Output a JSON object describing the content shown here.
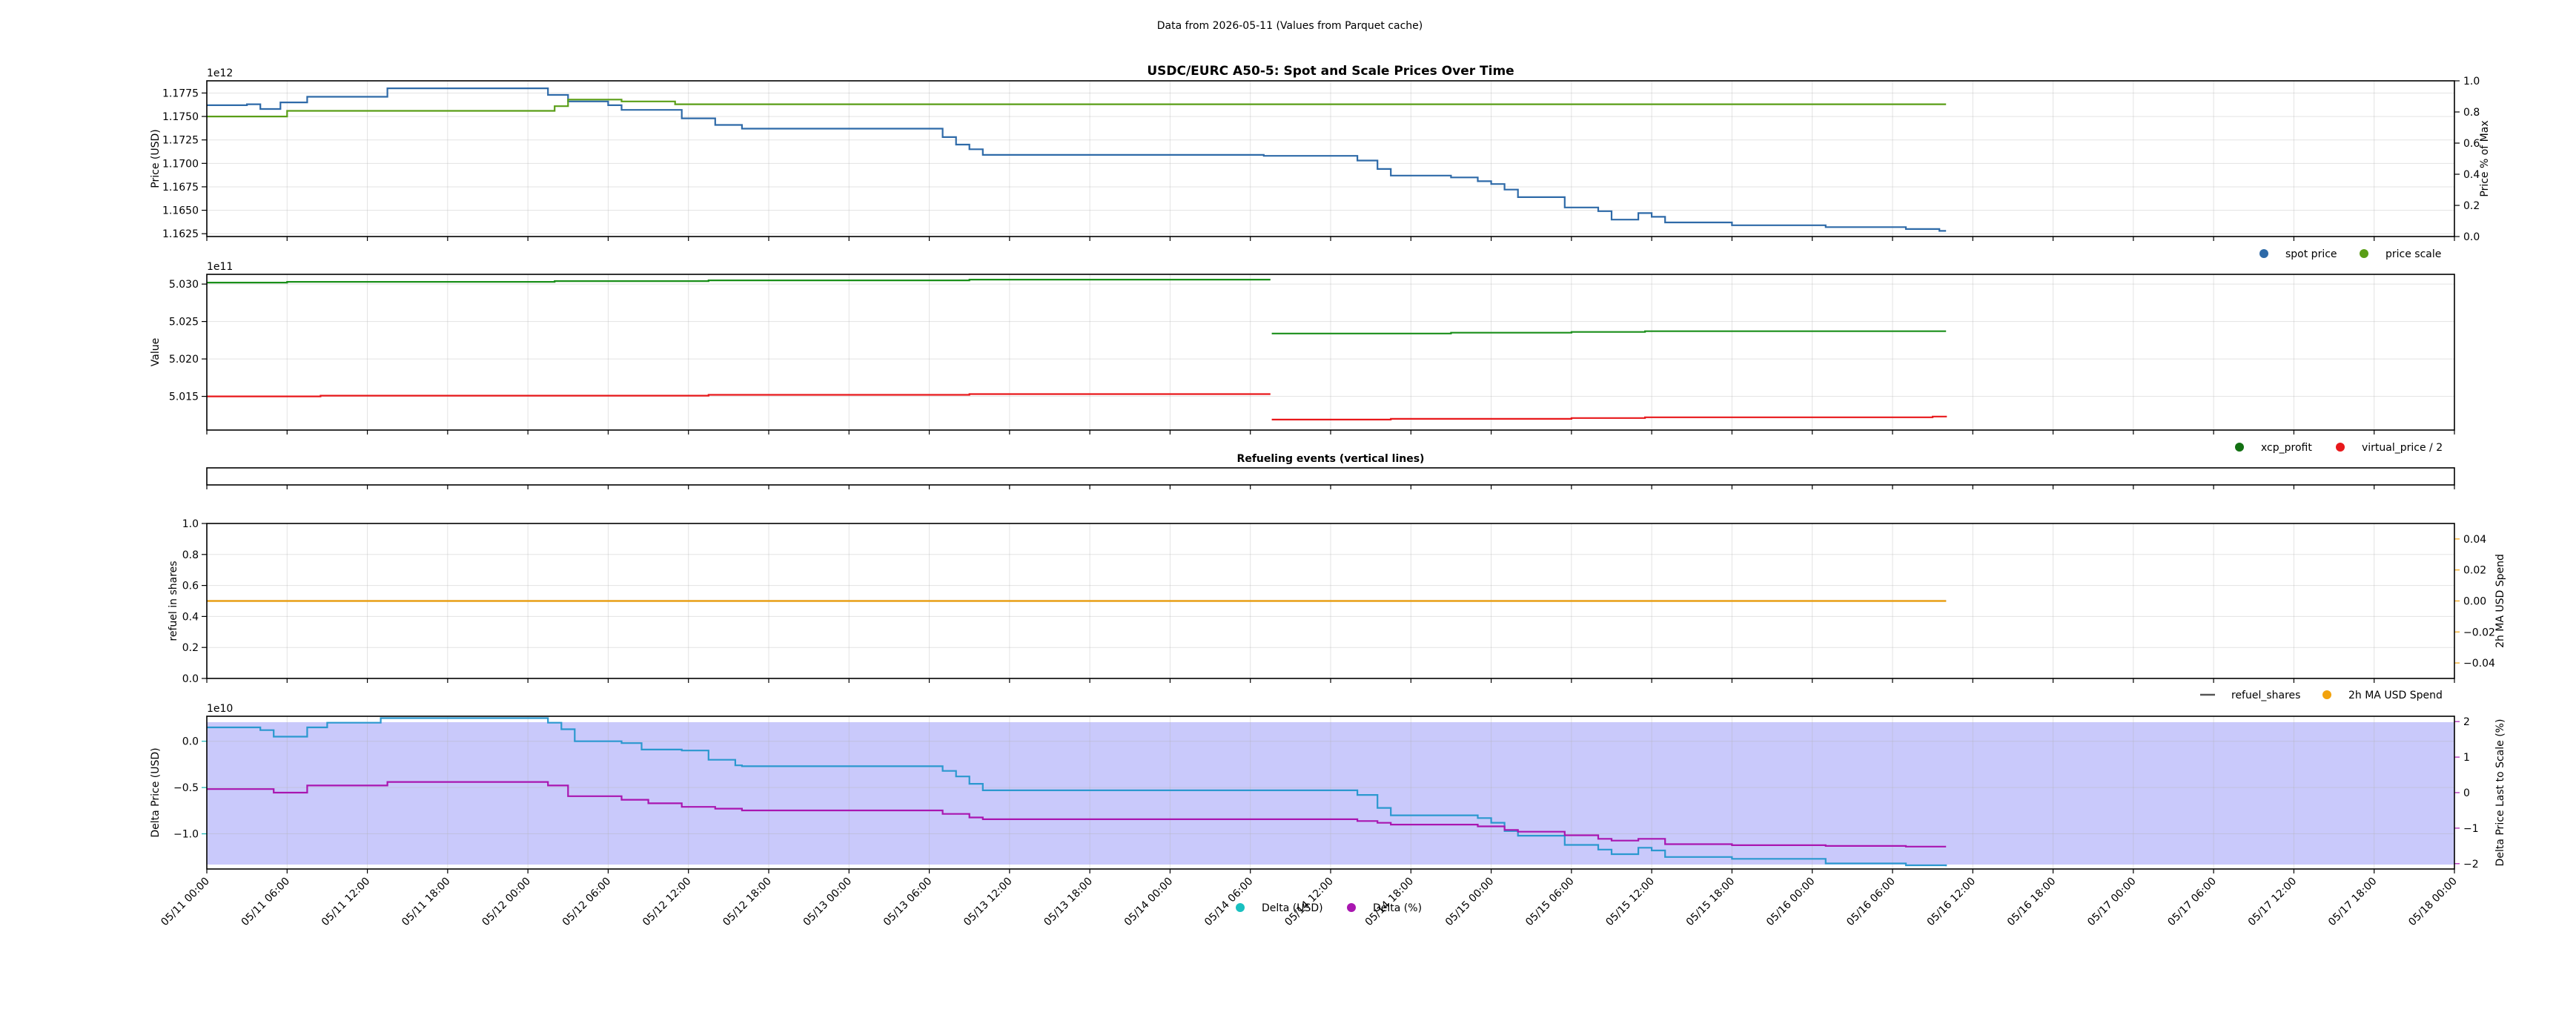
{
  "figure": {
    "suptitle": "Data from 2026-05-11 (Values from Parquet cache)"
  },
  "time_axis": {
    "start": "2026-05-11 00:00",
    "end": "2026-05-18 00:00",
    "data_end": "2026-05-16 10:00",
    "tick_labels": [
      "05/11 00:00",
      "05/11 06:00",
      "05/11 12:00",
      "05/11 18:00",
      "05/12 00:00",
      "05/12 06:00",
      "05/12 12:00",
      "05/12 18:00",
      "05/13 00:00",
      "05/13 06:00",
      "05/13 12:00",
      "05/13 18:00",
      "05/14 00:00",
      "05/14 06:00",
      "05/14 12:00",
      "05/14 18:00",
      "05/15 00:00",
      "05/15 06:00",
      "05/15 12:00",
      "05/15 18:00",
      "05/16 00:00",
      "05/16 06:00",
      "05/16 12:00",
      "05/16 18:00",
      "05/17 00:00",
      "05/17 06:00",
      "05/17 12:00",
      "05/17 18:00",
      "05/18 00:00"
    ]
  },
  "chart_data": [
    {
      "type": "line",
      "title": "USDC/EURC A50-5: Spot and Scale Prices Over Time",
      "ylabel": "Price (USD)",
      "y_offset_text": "1e12",
      "ylim": [
        1.1622,
        1.1788
      ],
      "yticks": [
        1.1625,
        1.165,
        1.1675,
        1.17,
        1.1725,
        1.175,
        1.1775
      ],
      "ytick_labels": [
        "1.1625",
        "1.1650",
        "1.1675",
        "1.1700",
        "1.1725",
        "1.1750",
        "1.1775"
      ],
      "y2label": "Price % of Max",
      "y2lim": [
        0,
        1
      ],
      "y2tick_labels": [
        "0.0",
        "0.2",
        "0.4",
        "0.6",
        "0.8",
        "1.0"
      ],
      "legend": "bottom-right",
      "grid": true,
      "series": [
        {
          "name": "spot price",
          "color": "#2e6aa8",
          "marker_color": "#2e6aa8",
          "step_points": [
            [
              0,
              1.1762
            ],
            [
              3,
              1.1763
            ],
            [
              4,
              1.1758
            ],
            [
              5.5,
              1.1765
            ],
            [
              7.5,
              1.1771
            ],
            [
              13.5,
              1.178
            ],
            [
              25.5,
              1.1773
            ],
            [
              27,
              1.1766
            ],
            [
              30,
              1.1762
            ],
            [
              31,
              1.1757
            ],
            [
              35.5,
              1.1748
            ],
            [
              38,
              1.1741
            ],
            [
              40,
              1.1737
            ],
            [
              55,
              1.1728
            ],
            [
              56,
              1.172
            ],
            [
              57,
              1.1715
            ],
            [
              58,
              1.1709
            ],
            [
              79,
              1.1708
            ],
            [
              86,
              1.1703
            ],
            [
              87.5,
              1.1694
            ],
            [
              88.5,
              1.1687
            ],
            [
              93,
              1.1685
            ],
            [
              95,
              1.1681
            ],
            [
              96,
              1.1678
            ],
            [
              97,
              1.1672
            ],
            [
              98,
              1.1664
            ],
            [
              101.5,
              1.1653
            ],
            [
              104,
              1.1649
            ],
            [
              105,
              1.164
            ],
            [
              107,
              1.1647
            ],
            [
              108,
              1.1643
            ],
            [
              109,
              1.1637
            ],
            [
              114,
              1.1634
            ],
            [
              121,
              1.1632
            ],
            [
              127,
              1.163
            ],
            [
              129.5,
              1.1628
            ],
            [
              130,
              1.1628
            ]
          ]
        },
        {
          "name": "price scale",
          "color": "#5a9e17",
          "marker_color": "#5a9e17",
          "step_points": [
            [
              0,
              1.175
            ],
            [
              6,
              1.1756
            ],
            [
              26,
              1.1761
            ],
            [
              27,
              1.1768
            ],
            [
              31,
              1.1766
            ],
            [
              35,
              1.1763
            ],
            [
              130,
              1.1763
            ]
          ]
        }
      ]
    },
    {
      "type": "line",
      "ylabel": "Value",
      "y_offset_text": "1e11",
      "ylim": [
        5.0105,
        5.0313
      ],
      "yticks": [
        5.015,
        5.02,
        5.025,
        5.03
      ],
      "ytick_labels": [
        "5.015",
        "5.020",
        "5.025",
        "5.030"
      ],
      "legend": "bottom-right",
      "grid": true,
      "series": [
        {
          "name": "xcp_profit",
          "color": "#1a8f1a",
          "marker_color": "#127012",
          "step_points": [
            [
              0,
              5.0302
            ],
            [
              6,
              5.0303
            ],
            [
              26,
              5.0304
            ],
            [
              37.5,
              5.0305
            ],
            [
              57,
              5.0306
            ],
            [
              79.5,
              5.0306
            ],
            [
              79.6,
              5.0234
            ],
            [
              93,
              5.0235
            ],
            [
              102,
              5.0236
            ],
            [
              107.5,
              5.0237
            ],
            [
              130,
              5.0237
            ]
          ]
        },
        {
          "name": "virtual_price / 2",
          "color": "#e8181b",
          "marker_color": "#e8181b",
          "step_points": [
            [
              0,
              5.015
            ],
            [
              8.5,
              5.0151
            ],
            [
              37.5,
              5.0152
            ],
            [
              57,
              5.0153
            ],
            [
              79.5,
              5.0153
            ],
            [
              79.6,
              5.0119
            ],
            [
              88.5,
              5.012
            ],
            [
              102,
              5.0121
            ],
            [
              107.5,
              5.0122
            ],
            [
              129,
              5.0123
            ],
            [
              130,
              5.0124
            ]
          ]
        }
      ]
    },
    {
      "type": "line",
      "title": "Refueling events (vertical lines)",
      "series": []
    },
    {
      "type": "line",
      "ylabel": "refuel in shares",
      "ylim": [
        0,
        1
      ],
      "ytick_labels": [
        "0.0",
        "0.2",
        "0.4",
        "0.6",
        "0.8",
        "1.0"
      ],
      "y2label": "2h MA USD Spend",
      "y2lim": [
        -0.05,
        0.05
      ],
      "y2ticks": [
        -0.04,
        -0.02,
        0.0,
        0.02,
        0.04
      ],
      "y2tick_labels": [
        "−0.04",
        "−0.02",
        "0.00",
        "0.02",
        "0.04"
      ],
      "legend": "bottom-right",
      "grid": true,
      "series": [
        {
          "name": "refuel_shares",
          "color": "#555555",
          "marker": "line",
          "step_points": [
            [
              0,
              0.5
            ],
            [
              130,
              0.5
            ]
          ]
        },
        {
          "name": "2h MA USD Spend",
          "color": "#f2a20c",
          "marker_color": "#f2a20c",
          "axis": "right",
          "step_points": [
            [
              0,
              0
            ],
            [
              130,
              0
            ]
          ]
        }
      ]
    },
    {
      "type": "line",
      "ylabel": "Delta Price (USD)",
      "y_offset_text": "1e10",
      "ylim": [
        -1.38,
        0.27
      ],
      "yticks": [
        0.0,
        -0.5,
        -1.0
      ],
      "ytick_labels": [
        "0.0",
        "−0.5",
        "−1.0"
      ],
      "y2label": "Delta Price Last to Scale (%)",
      "y2lim": [
        -2.15,
        2.15
      ],
      "y2ticks": [
        2,
        1,
        0,
        -1,
        -2
      ],
      "y2tick_labels": [
        "2",
        "1",
        "0",
        "−1",
        "−2"
      ],
      "shaded_region_color": "#c9c9fb",
      "legend": "bottom-center",
      "grid": true,
      "series": [
        {
          "name": "Delta (USD)",
          "color": "#2b98cf",
          "marker_color": "#19c0c0",
          "step_points": [
            [
              0,
              0.15
            ],
            [
              4,
              0.12
            ],
            [
              5,
              0.05
            ],
            [
              7.5,
              0.15
            ],
            [
              9,
              0.2
            ],
            [
              13,
              0.25
            ],
            [
              25.5,
              0.2
            ],
            [
              26.5,
              0.13
            ],
            [
              27.5,
              0.0
            ],
            [
              31,
              -0.02
            ],
            [
              32.5,
              -0.09
            ],
            [
              35.5,
              -0.1
            ],
            [
              37.5,
              -0.2
            ],
            [
              39.5,
              -0.26
            ],
            [
              40,
              -0.27
            ],
            [
              55,
              -0.32
            ],
            [
              56,
              -0.38
            ],
            [
              57,
              -0.46
            ],
            [
              58,
              -0.53
            ],
            [
              79,
              -0.53
            ],
            [
              86,
              -0.58
            ],
            [
              87.5,
              -0.72
            ],
            [
              88.5,
              -0.8
            ],
            [
              93,
              -0.8
            ],
            [
              95,
              -0.83
            ],
            [
              96,
              -0.88
            ],
            [
              97,
              -0.97
            ],
            [
              98,
              -1.02
            ],
            [
              101.5,
              -1.12
            ],
            [
              104,
              -1.17
            ],
            [
              105,
              -1.22
            ],
            [
              107,
              -1.15
            ],
            [
              108,
              -1.18
            ],
            [
              109,
              -1.25
            ],
            [
              114,
              -1.27
            ],
            [
              121,
              -1.32
            ],
            [
              127,
              -1.34
            ],
            [
              130,
              -1.35
            ]
          ]
        },
        {
          "name": "Delta (%)",
          "color": "#a916b0",
          "marker_color": "#a916b0",
          "axis": "right",
          "step_points": [
            [
              0,
              0.1
            ],
            [
              5,
              0.0
            ],
            [
              7.5,
              0.2
            ],
            [
              13.5,
              0.3
            ],
            [
              25.5,
              0.2
            ],
            [
              27,
              -0.1
            ],
            [
              31,
              -0.2
            ],
            [
              33,
              -0.3
            ],
            [
              35.5,
              -0.4
            ],
            [
              38,
              -0.45
            ],
            [
              40,
              -0.5
            ],
            [
              55,
              -0.6
            ],
            [
              57,
              -0.7
            ],
            [
              58,
              -0.75
            ],
            [
              79,
              -0.75
            ],
            [
              86,
              -0.8
            ],
            [
              87.5,
              -0.85
            ],
            [
              88.5,
              -0.9
            ],
            [
              95,
              -0.95
            ],
            [
              97,
              -1.05
            ],
            [
              98,
              -1.1
            ],
            [
              101.5,
              -1.2
            ],
            [
              104,
              -1.3
            ],
            [
              105,
              -1.35
            ],
            [
              107,
              -1.3
            ],
            [
              109,
              -1.45
            ],
            [
              114,
              -1.48
            ],
            [
              121,
              -1.5
            ],
            [
              127,
              -1.52
            ],
            [
              130,
              -1.52
            ]
          ]
        }
      ]
    }
  ]
}
